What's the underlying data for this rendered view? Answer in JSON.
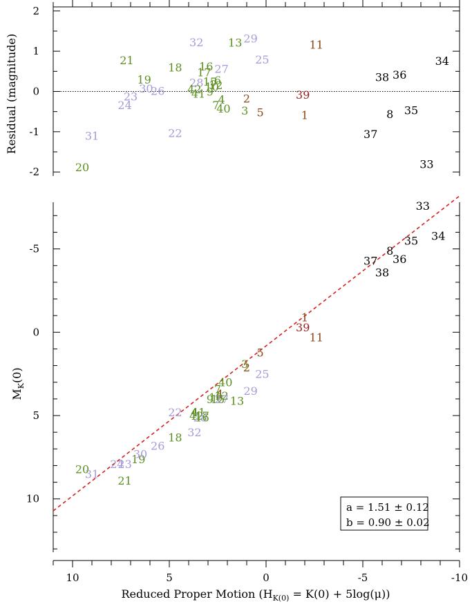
{
  "colors": {
    "green": "#5a8f1e",
    "lavender": "#a59ad8",
    "brown": "#8b4513",
    "darkred": "#9b1b1b",
    "black": "#000000",
    "fit": "#d42020"
  },
  "chart_data": [
    {
      "type": "scatter",
      "title": "",
      "xlabel": "",
      "ylabel": "Residual (magnitude)",
      "xlim": [
        11,
        -10
      ],
      "ylim": [
        -2.1,
        2.1
      ],
      "yticks": [
        2,
        1,
        0,
        -1,
        -2
      ],
      "reference_line_y": 0,
      "points": [
        {
          "label": "20",
          "x": 9.5,
          "y": -1.88,
          "color": "green"
        },
        {
          "label": "31",
          "x": 9.0,
          "y": -1.1,
          "color": "lavender"
        },
        {
          "label": "24",
          "x": 7.3,
          "y": -0.33,
          "color": "lavender"
        },
        {
          "label": "23",
          "x": 7.0,
          "y": -0.12,
          "color": "lavender"
        },
        {
          "label": "21",
          "x": 7.2,
          "y": 0.78,
          "color": "green"
        },
        {
          "label": "19",
          "x": 6.3,
          "y": 0.3,
          "color": "green"
        },
        {
          "label": "30",
          "x": 6.2,
          "y": 0.08,
          "color": "lavender"
        },
        {
          "label": "26",
          "x": 5.6,
          "y": 0.02,
          "color": "lavender"
        },
        {
          "label": "22",
          "x": 4.7,
          "y": -1.03,
          "color": "lavender"
        },
        {
          "label": "18",
          "x": 4.7,
          "y": 0.6,
          "color": "green"
        },
        {
          "label": "32",
          "x": 3.6,
          "y": 1.23,
          "color": "lavender"
        },
        {
          "label": "28",
          "x": 3.6,
          "y": 0.22,
          "color": "lavender"
        },
        {
          "label": "42",
          "x": 3.7,
          "y": 0.06,
          "color": "green"
        },
        {
          "label": "41",
          "x": 3.5,
          "y": -0.05,
          "color": "green"
        },
        {
          "label": "16",
          "x": 3.1,
          "y": 0.63,
          "color": "green"
        },
        {
          "label": "17",
          "x": 3.2,
          "y": 0.48,
          "color": "green"
        },
        {
          "label": "15",
          "x": 2.9,
          "y": 0.25,
          "color": "green"
        },
        {
          "label": "6",
          "x": 2.5,
          "y": 0.28,
          "color": "green"
        },
        {
          "label": "10",
          "x": 2.8,
          "y": 0.12,
          "color": "green"
        },
        {
          "label": "12",
          "x": 2.6,
          "y": 0.16,
          "color": "green"
        },
        {
          "label": "9",
          "x": 2.9,
          "y": 0.0,
          "color": "green"
        },
        {
          "label": "7",
          "x": 2.6,
          "y": -0.33,
          "color": "green"
        },
        {
          "label": "4",
          "x": 2.3,
          "y": -0.2,
          "color": "green"
        },
        {
          "label": "40",
          "x": 2.2,
          "y": -0.42,
          "color": "green"
        },
        {
          "label": "27",
          "x": 2.3,
          "y": 0.57,
          "color": "lavender"
        },
        {
          "label": "13",
          "x": 1.6,
          "y": 1.22,
          "color": "green"
        },
        {
          "label": "29",
          "x": 0.8,
          "y": 1.32,
          "color": "lavender"
        },
        {
          "label": "25",
          "x": 0.2,
          "y": 0.8,
          "color": "lavender"
        },
        {
          "label": "3",
          "x": 1.1,
          "y": -0.47,
          "color": "green"
        },
        {
          "label": "2",
          "x": 1.0,
          "y": -0.17,
          "color": "brown"
        },
        {
          "label": "5",
          "x": 0.3,
          "y": -0.51,
          "color": "brown"
        },
        {
          "label": "11",
          "x": -2.6,
          "y": 1.17,
          "color": "brown"
        },
        {
          "label": "39",
          "x": -1.9,
          "y": -0.08,
          "color": "darkred"
        },
        {
          "label": "1",
          "x": -2.0,
          "y": -0.58,
          "color": "brown"
        },
        {
          "label": "34",
          "x": -9.1,
          "y": 0.76,
          "color": "black"
        },
        {
          "label": "38",
          "x": -6.0,
          "y": 0.36,
          "color": "black"
        },
        {
          "label": "36",
          "x": -6.9,
          "y": 0.42,
          "color": "black"
        },
        {
          "label": "8",
          "x": -6.4,
          "y": -0.56,
          "color": "black"
        },
        {
          "label": "35",
          "x": -7.5,
          "y": -0.46,
          "color": "black"
        },
        {
          "label": "37",
          "x": -5.4,
          "y": -1.05,
          "color": "black"
        },
        {
          "label": "33",
          "x": -8.3,
          "y": -1.8,
          "color": "black"
        }
      ]
    },
    {
      "type": "scatter",
      "title": "",
      "xlabel": "Reduced Proper Motion (H",
      "xlabel_sub": "K(0)",
      "xlabel_tail": " = K(0) + 5log(μ))",
      "ylabel": "M",
      "ylabel_sub": "K",
      "ylabel_tail": "(0)",
      "xlim": [
        11,
        -10
      ],
      "ylim": [
        13.2,
        -7.8
      ],
      "xticks": [
        10,
        5,
        0,
        -5,
        -10
      ],
      "yticks": [
        -5,
        0,
        5,
        10
      ],
      "fit": {
        "a": 1.51,
        "b": 0.9
      },
      "fit_label_a": "a = 1.51 ± 0.12",
      "fit_label_b": "b = 0.90 ± 0.02",
      "points": [
        {
          "label": "20",
          "x": 9.5,
          "y": 8.2,
          "color": "green"
        },
        {
          "label": "31",
          "x": 9.0,
          "y": 8.5,
          "color": "lavender"
        },
        {
          "label": "24",
          "x": 7.7,
          "y": 7.9,
          "color": "lavender"
        },
        {
          "label": "23",
          "x": 7.3,
          "y": 7.9,
          "color": "lavender"
        },
        {
          "label": "21",
          "x": 7.3,
          "y": 8.9,
          "color": "green"
        },
        {
          "label": "19",
          "x": 6.6,
          "y": 7.6,
          "color": "green"
        },
        {
          "label": "30",
          "x": 6.5,
          "y": 7.3,
          "color": "lavender"
        },
        {
          "label": "26",
          "x": 5.6,
          "y": 6.8,
          "color": "lavender"
        },
        {
          "label": "22",
          "x": 4.7,
          "y": 4.8,
          "color": "lavender"
        },
        {
          "label": "18",
          "x": 4.7,
          "y": 6.3,
          "color": "green"
        },
        {
          "label": "32",
          "x": 3.7,
          "y": 6.0,
          "color": "lavender"
        },
        {
          "label": "4",
          "x": 3.7,
          "y": 4.8,
          "color": "green"
        },
        {
          "label": "41",
          "x": 3.5,
          "y": 4.8,
          "color": "green"
        },
        {
          "label": "42",
          "x": 3.6,
          "y": 5.0,
          "color": "green"
        },
        {
          "label": "28",
          "x": 3.4,
          "y": 5.1,
          "color": "lavender"
        },
        {
          "label": "17",
          "x": 3.3,
          "y": 5.0,
          "color": "green"
        },
        {
          "label": "16",
          "x": 3.3,
          "y": 5.1,
          "color": "green"
        },
        {
          "label": "7",
          "x": 2.5,
          "y": 3.4,
          "color": "green"
        },
        {
          "label": "40",
          "x": 2.1,
          "y": 3.0,
          "color": "green"
        },
        {
          "label": "4",
          "x": 2.4,
          "y": 3.7,
          "color": "brown"
        },
        {
          "label": "9",
          "x": 2.9,
          "y": 4.0,
          "color": "green"
        },
        {
          "label": "10",
          "x": 2.6,
          "y": 3.9,
          "color": "green"
        },
        {
          "label": "12",
          "x": 2.3,
          "y": 3.8,
          "color": "green"
        },
        {
          "label": "15",
          "x": 2.5,
          "y": 4.0,
          "color": "green"
        },
        {
          "label": "27",
          "x": 2.3,
          "y": 4.0,
          "color": "lavender"
        },
        {
          "label": "13",
          "x": 1.5,
          "y": 4.1,
          "color": "green"
        },
        {
          "label": "29",
          "x": 0.8,
          "y": 3.5,
          "color": "lavender"
        },
        {
          "label": "25",
          "x": 0.2,
          "y": 2.5,
          "color": "lavender"
        },
        {
          "label": "3",
          "x": 1.1,
          "y": 1.9,
          "color": "green"
        },
        {
          "label": "2",
          "x": 1.0,
          "y": 2.1,
          "color": "brown"
        },
        {
          "label": "5",
          "x": 0.3,
          "y": 1.2,
          "color": "brown"
        },
        {
          "label": "1",
          "x": -2.0,
          "y": -0.9,
          "color": "brown"
        },
        {
          "label": "39",
          "x": -1.9,
          "y": -0.3,
          "color": "darkred"
        },
        {
          "label": "11",
          "x": -2.6,
          "y": 0.3,
          "color": "brown"
        },
        {
          "label": "37",
          "x": -5.4,
          "y": -4.3,
          "color": "black"
        },
        {
          "label": "38",
          "x": -6.0,
          "y": -3.6,
          "color": "black"
        },
        {
          "label": "8",
          "x": -6.4,
          "y": -4.9,
          "color": "black"
        },
        {
          "label": "36",
          "x": -6.9,
          "y": -4.4,
          "color": "black"
        },
        {
          "label": "35",
          "x": -7.5,
          "y": -5.5,
          "color": "black"
        },
        {
          "label": "34",
          "x": -8.9,
          "y": -5.8,
          "color": "black"
        },
        {
          "label": "33",
          "x": -8.1,
          "y": -7.6,
          "color": "black"
        }
      ]
    }
  ]
}
